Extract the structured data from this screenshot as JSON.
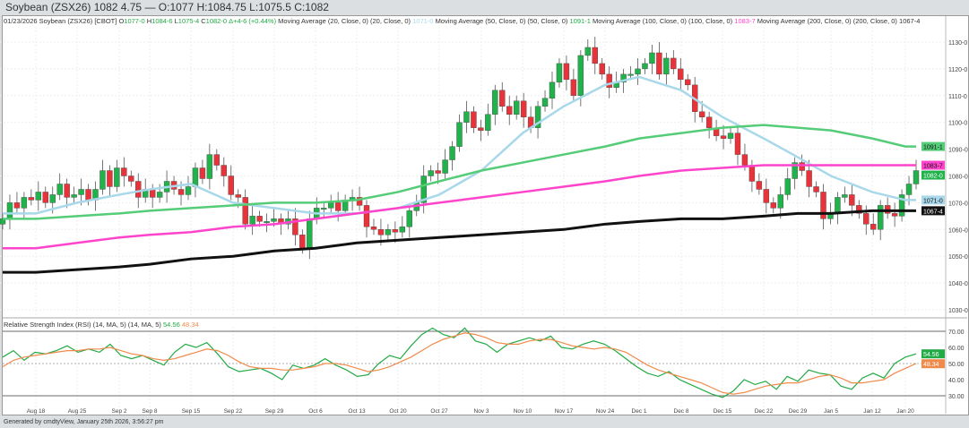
{
  "title": "Soybean (ZSX26) 1082 4.75 — O:1077 H:1084.75 L:1075.5 C:1082",
  "legend": {
    "date": "01/23/2026",
    "symbol": "Soybean (ZSX26) [CBOT]",
    "o": "O",
    "o_val": "1077-0",
    "h": "H",
    "h_val": "1084-6",
    "l": "L",
    "l_val": "1075-4",
    "c": "C",
    "c_val": "1082-0",
    "chg": "Δ+4-6 (+0.44%)",
    "ma20": "Moving Average (20, Close, 0) (20, Close, 0)",
    "ma20_val": "1071-0",
    "ma50": "Moving Average (50, Close, 0) (50, Close, 0)",
    "ma50_val": "1091-1",
    "ma100": "Moving Average (100, Close, 0) (100, Close, 0)",
    "ma100_val": "1083-7",
    "ma200": "Moving Average (200, Close, 0) (200, Close, 0)",
    "ma200_val": "1067-4"
  },
  "rsi_legend": {
    "label": "Relative Strength Index (RSI) (14, MA, 5) (14, MA, 5)",
    "rsi_val": "54.56",
    "ma_val": "48.34"
  },
  "footer": "Generated by cmdtyView, January 25th 2026, 3:56:27 pm",
  "colors": {
    "up": "#22b24c",
    "down": "#e8333a",
    "ma20": "#a8d8ea",
    "ma50": "#55cc77",
    "ma100": "#ff44cc",
    "ma200": "#111111",
    "rsi": "#22aa44",
    "rsi_ma": "#f08a4b"
  },
  "chart_data": [
    {
      "type": "candlestick",
      "title": "Soybean (ZSX26)",
      "ylim": [
        1027,
        1136
      ],
      "y_ticks": [
        "1130-0",
        "1120-0",
        "1110-0",
        "1100-0",
        "1090-0",
        "1080-0",
        "1070-0",
        "1060-0",
        "1050-0",
        "1040-0",
        "1030-0"
      ],
      "x_ticks": [
        "Aug 18",
        "Aug 25",
        "Sep 2",
        "Sep 8",
        "Sep 15",
        "Sep 22",
        "Sep 29",
        "Oct 6",
        "Oct 13",
        "Oct 20",
        "Oct 27",
        "Nov 3",
        "Nov 10",
        "Nov 17",
        "Nov 24",
        "Dec 1",
        "Dec 8",
        "Dec 15",
        "Dec 22",
        "Dec 29",
        "Jan 5",
        "Jan 12",
        "Jan 20"
      ],
      "closes": [
        1064,
        1070,
        1068,
        1072,
        1071,
        1074,
        1070,
        1073,
        1077,
        1072,
        1073,
        1075,
        1071,
        1075,
        1082,
        1076,
        1083,
        1080,
        1078,
        1072,
        1075,
        1072,
        1074,
        1078,
        1075,
        1073,
        1076,
        1083,
        1079,
        1088,
        1084,
        1080,
        1073,
        1072,
        1062,
        1065,
        1063,
        1063,
        1064,
        1062,
        1064,
        1058,
        1053,
        1064,
        1068,
        1068,
        1070,
        1067,
        1071,
        1072,
        1069,
        1061,
        1060,
        1058,
        1060,
        1059,
        1061,
        1067,
        1070,
        1080,
        1082,
        1081,
        1086,
        1091,
        1100,
        1104,
        1098,
        1097,
        1103,
        1112,
        1106,
        1103,
        1108,
        1102,
        1098,
        1106,
        1109,
        1115,
        1122,
        1116,
        1110,
        1125,
        1128,
        1122,
        1118,
        1113,
        1115,
        1118,
        1118,
        1120,
        1122,
        1126,
        1118,
        1124,
        1120,
        1116,
        1114,
        1104,
        1102,
        1098,
        1095,
        1094,
        1096,
        1088,
        1084,
        1078,
        1075,
        1070,
        1068,
        1073,
        1079,
        1085,
        1082,
        1076,
        1074,
        1064,
        1066,
        1072,
        1073,
        1069,
        1066,
        1062,
        1060,
        1069,
        1066,
        1065,
        1073,
        1077,
        1082
      ],
      "series": [
        {
          "name": "Moving Average (20)",
          "label": "1071-0",
          "values_at_ticks": [
            1066,
            1070,
            1073,
            1075,
            1077,
            1070,
            1068,
            1066,
            1066,
            1068,
            1073,
            1082,
            1096,
            1106,
            1114,
            1117,
            1112,
            1102,
            1094,
            1087,
            1080,
            1074,
            1071
          ]
        },
        {
          "name": "Moving Average (50)",
          "label": "1091-1",
          "values_at_ticks": [
            1064,
            1065,
            1066,
            1067,
            1068,
            1069,
            1070,
            1070,
            1071,
            1074,
            1078,
            1082,
            1085,
            1088,
            1091,
            1094,
            1096,
            1098,
            1099,
            1098,
            1097,
            1094,
            1091
          ]
        },
        {
          "name": "Moving Average (100)",
          "label": "1083-7",
          "values_at_ticks": [
            1053,
            1055,
            1057,
            1058,
            1059,
            1061,
            1062,
            1064,
            1066,
            1068,
            1070,
            1072,
            1074,
            1076,
            1078,
            1080,
            1082,
            1083,
            1084,
            1084,
            1084,
            1084,
            1084
          ]
        },
        {
          "name": "Moving Average (200)",
          "label": "1067-4",
          "values_at_ticks": [
            1044,
            1045,
            1046,
            1047,
            1049,
            1050,
            1052,
            1053,
            1055,
            1056,
            1057,
            1058,
            1059,
            1060,
            1062,
            1063,
            1064,
            1064,
            1065,
            1066,
            1066,
            1067,
            1067
          ]
        }
      ],
      "price_labels": {
        "last": "1082-0"
      }
    },
    {
      "type": "line",
      "title": "Relative Strength Index (RSI) (14, MA, 5)",
      "ylim": [
        26,
        74
      ],
      "y_ticks": [
        "70.00",
        "60.00",
        "50.00",
        "40.00",
        "30.00"
      ],
      "series": [
        {
          "name": "RSI",
          "label": "54.56",
          "values": [
            54,
            58,
            52,
            57,
            56,
            58,
            61,
            57,
            59,
            57,
            62,
            55,
            53,
            55,
            52,
            49,
            57,
            62,
            60,
            63,
            56,
            48,
            45,
            46,
            47,
            44,
            40,
            49,
            47,
            49,
            53,
            49,
            46,
            42,
            43,
            50,
            55,
            53,
            61,
            68,
            72,
            68,
            66,
            72,
            64,
            62,
            57,
            62,
            64,
            66,
            64,
            67,
            60,
            59,
            62,
            64,
            62,
            58,
            53,
            48,
            44,
            42,
            45,
            40,
            37,
            34,
            31,
            29,
            33,
            40,
            37,
            39,
            34,
            42,
            39,
            46,
            44,
            43,
            36,
            34,
            41,
            44,
            41,
            50,
            54,
            56
          ]
        },
        {
          "name": "RSI MA",
          "label": "48.34",
          "values": [
            48,
            52,
            54,
            55,
            56,
            57,
            58,
            58,
            59,
            59,
            60,
            58,
            56,
            55,
            53,
            52,
            53,
            55,
            57,
            59,
            58,
            55,
            51,
            48,
            47,
            47,
            46,
            46,
            47,
            48,
            50,
            50,
            49,
            47,
            45,
            46,
            48,
            51,
            54,
            58,
            62,
            65,
            67,
            69,
            68,
            66,
            63,
            62,
            62,
            64,
            65,
            65,
            63,
            61,
            60,
            59,
            60,
            59,
            57,
            53,
            49,
            46,
            44,
            42,
            40,
            38,
            35,
            32,
            31,
            32,
            34,
            36,
            37,
            38,
            38,
            40,
            42,
            43,
            41,
            38,
            38,
            39,
            40,
            44,
            47,
            50
          ]
        }
      ]
    }
  ]
}
